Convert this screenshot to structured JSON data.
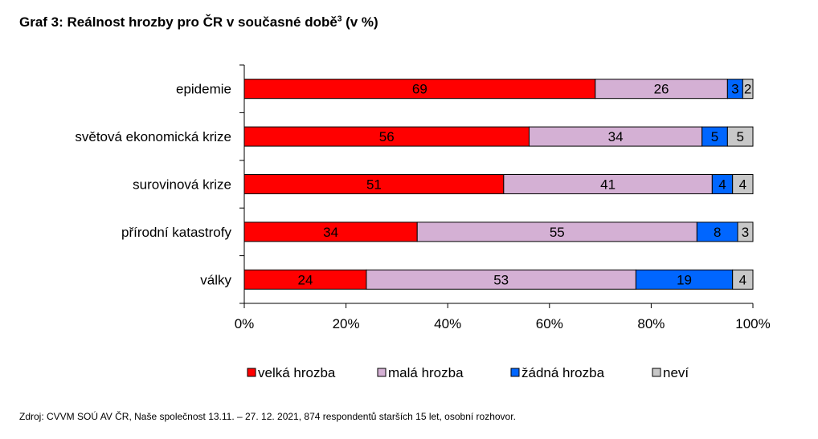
{
  "page": {
    "title_main": "Graf 3: Reálnost hrozby pro ČR v současné době",
    "title_sup": "3",
    "title_suffix": " (v %)",
    "source": "Zdroj: CVVM SOÚ AV ČR, Naše společnost 13.11. – 27. 12. 2021, 874 respondentů starších 15 let, osobní rozhovor."
  },
  "chart_data": {
    "type": "bar",
    "orientation": "horizontal",
    "stacked": "percent",
    "categories": [
      "epidemie",
      "světová ekonomická krize",
      "surovinová krize",
      "přírodní katastrofy",
      "války"
    ],
    "series": [
      {
        "name": "velká hrozba",
        "color": "#ff0000",
        "values": [
          69,
          56,
          51,
          34,
          24
        ]
      },
      {
        "name": "malá hrozba",
        "color": "#d4b0d4",
        "values": [
          26,
          34,
          41,
          55,
          53
        ]
      },
      {
        "name": "žádná hrozba",
        "color": "#0066ff",
        "values": [
          3,
          5,
          4,
          8,
          19
        ]
      },
      {
        "name": "neví",
        "color": "#c8c8c8",
        "values": [
          2,
          5,
          4,
          3,
          4
        ]
      }
    ],
    "xlim": [
      0,
      100
    ],
    "xticks": [
      "0%",
      "20%",
      "40%",
      "60%",
      "80%",
      "100%"
    ],
    "xlabel": "",
    "ylabel": "",
    "legend_position": "bottom",
    "grid": false
  }
}
